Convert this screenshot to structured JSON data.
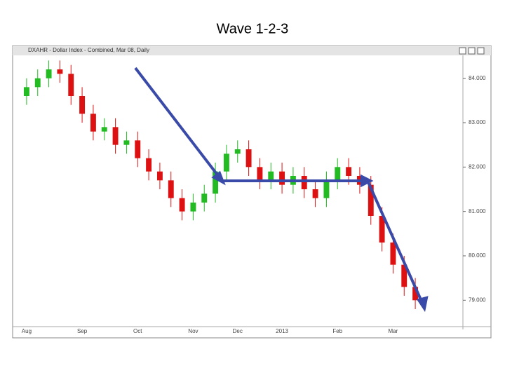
{
  "chart_data": {
    "type": "candlestick",
    "title": "Wave 1-2-3",
    "subtitle": "DXAHR - Dollar Index - Combined, Mar 08, Daily",
    "categories": [
      "Aug",
      null,
      null,
      null,
      null,
      "Sep",
      null,
      null,
      null,
      null,
      "Oct",
      null,
      null,
      null,
      null,
      "Nov",
      null,
      null,
      null,
      "Dec",
      null,
      null,
      null,
      "2013",
      null,
      null,
      null,
      null,
      "Feb",
      null,
      null,
      null,
      null,
      "Mar",
      null,
      null
    ],
    "open": [
      83.6,
      83.8,
      84.0,
      84.2,
      84.1,
      83.6,
      83.2,
      82.8,
      82.9,
      82.5,
      82.6,
      82.2,
      81.9,
      81.7,
      81.3,
      81.0,
      81.2,
      81.4,
      81.9,
      82.3,
      82.4,
      82.0,
      81.7,
      81.9,
      81.6,
      81.8,
      81.5,
      81.3,
      81.7,
      82.0,
      81.8,
      81.6,
      80.9,
      80.3,
      79.8,
      79.3
    ],
    "high": [
      84.0,
      84.2,
      84.4,
      84.4,
      84.3,
      83.8,
      83.4,
      83.1,
      83.1,
      82.8,
      82.8,
      82.4,
      82.1,
      81.9,
      81.5,
      81.4,
      81.6,
      82.1,
      82.5,
      82.6,
      82.6,
      82.2,
      82.1,
      82.1,
      82.0,
      82.0,
      81.7,
      81.9,
      82.2,
      82.2,
      82.0,
      81.8,
      81.1,
      80.5,
      80.0,
      79.5
    ],
    "low": [
      83.4,
      83.6,
      83.8,
      83.9,
      83.4,
      83.0,
      82.6,
      82.6,
      82.3,
      82.3,
      82.0,
      81.7,
      81.5,
      81.1,
      80.8,
      80.8,
      81.0,
      81.2,
      81.7,
      82.1,
      81.8,
      81.5,
      81.5,
      81.4,
      81.4,
      81.3,
      81.1,
      81.1,
      81.5,
      81.6,
      81.4,
      80.7,
      80.1,
      79.6,
      79.1,
      78.8
    ],
    "close": [
      83.8,
      84.0,
      84.2,
      84.1,
      83.6,
      83.2,
      82.8,
      82.9,
      82.5,
      82.6,
      82.2,
      81.9,
      81.7,
      81.3,
      81.0,
      81.2,
      81.4,
      81.9,
      82.3,
      82.4,
      82.0,
      81.7,
      81.9,
      81.6,
      81.8,
      81.5,
      81.3,
      81.7,
      82.0,
      81.8,
      81.6,
      80.9,
      80.3,
      79.8,
      79.3,
      79.0
    ],
    "up_color": "#22bb22",
    "down_color": "#dd1111",
    "ylim": [
      78.5,
      84.5
    ],
    "yticks": [
      {
        "value": 79,
        "label": "79.000"
      },
      {
        "value": 80,
        "label": "80.000"
      },
      {
        "value": 81,
        "label": "81.000"
      },
      {
        "value": 82,
        "label": "82.000"
      },
      {
        "value": 83,
        "label": "83.000"
      },
      {
        "value": 84,
        "label": "84.000"
      }
    ],
    "grid": false
  }
}
